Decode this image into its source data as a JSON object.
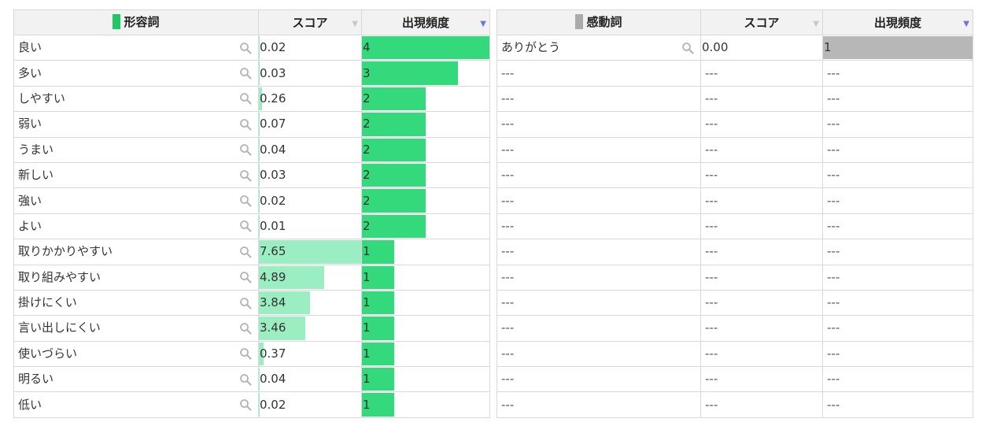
{
  "left_table": {
    "headers": {
      "word": "形容詞",
      "score": "スコア",
      "freq": "出現頻度"
    },
    "swatch_color": "#1ec964",
    "score_bar_color": "#9beec1",
    "freq_bar_color": "#34d97c",
    "score_max": 7.65,
    "freq_max": 4,
    "rows": [
      {
        "word": "良い",
        "score": "0.02",
        "freq": "4"
      },
      {
        "word": "多い",
        "score": "0.03",
        "freq": "3"
      },
      {
        "word": "しやすい",
        "score": "0.26",
        "freq": "2"
      },
      {
        "word": "弱い",
        "score": "0.07",
        "freq": "2"
      },
      {
        "word": "うまい",
        "score": "0.04",
        "freq": "2"
      },
      {
        "word": "新しい",
        "score": "0.03",
        "freq": "2"
      },
      {
        "word": "強い",
        "score": "0.02",
        "freq": "2"
      },
      {
        "word": "よい",
        "score": "0.01",
        "freq": "2"
      },
      {
        "word": "取りかかりやすい",
        "score": "7.65",
        "freq": "1"
      },
      {
        "word": "取り組みやすい",
        "score": "4.89",
        "freq": "1"
      },
      {
        "word": "掛けにくい",
        "score": "3.84",
        "freq": "1"
      },
      {
        "word": "言い出しにくい",
        "score": "3.46",
        "freq": "1"
      },
      {
        "word": "使いづらい",
        "score": "0.37",
        "freq": "1"
      },
      {
        "word": "明るい",
        "score": "0.04",
        "freq": "1"
      },
      {
        "word": "低い",
        "score": "0.02",
        "freq": "1"
      }
    ]
  },
  "right_table": {
    "headers": {
      "word": "感動詞",
      "score": "スコア",
      "freq": "出現頻度"
    },
    "swatch_color": "#aaaaaa",
    "freq_bar_color": "#b7b7b7",
    "empty_text": "---",
    "rows": [
      {
        "word": "ありがとう",
        "score": "0.00",
        "freq": "1"
      }
    ],
    "empty_row_count": 14
  }
}
